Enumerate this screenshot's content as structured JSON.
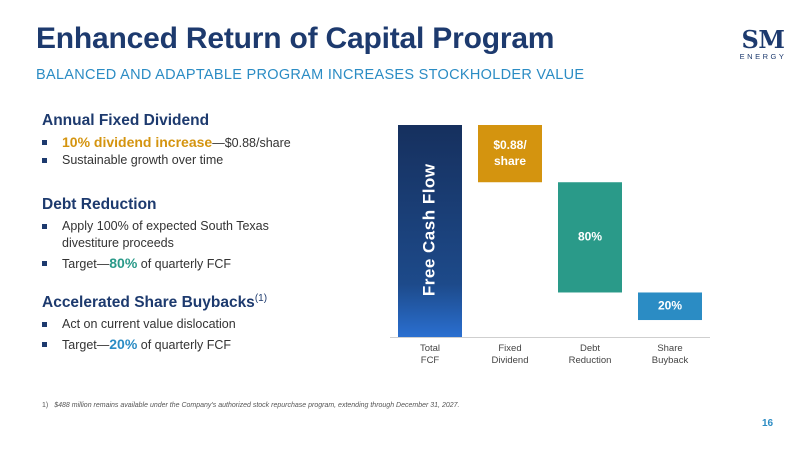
{
  "header": {
    "title": "Enhanced Return of Capital Program",
    "subtitle": "BALANCED AND ADAPTABLE PROGRAM INCREASES STOCKHOLDER VALUE"
  },
  "logo": {
    "mark": "SM",
    "sub": "ENERGY"
  },
  "sections": {
    "dividend": {
      "heading": "Annual Fixed Dividend",
      "b1_highlight": "10% dividend increase",
      "b1_rest": "—$0.88/share",
      "b2": "Sustainable growth over time"
    },
    "debt": {
      "heading": "Debt Reduction",
      "b1_line1": "Apply 100% of expected South Texas",
      "b1_line2": "divestiture proceeds",
      "b2_pre": "Target—",
      "b2_highlight": "80%",
      "b2_post": " of quarterly FCF"
    },
    "buyback": {
      "heading": "Accelerated Share Buybacks",
      "heading_note": "(1)",
      "b1": "Act on current value dislocation",
      "b2_pre": "Target—",
      "b2_highlight": "20%",
      "b2_post": " of quarterly FCF"
    }
  },
  "chart_data": {
    "type": "bar",
    "subtype": "waterfall",
    "categories": [
      [
        "Total",
        "FCF"
      ],
      [
        "Fixed",
        "Dividend"
      ],
      [
        "Debt",
        "Reduction"
      ],
      [
        "Share",
        "Buyback"
      ]
    ],
    "bars": [
      {
        "name": "total",
        "label": "Free Cash Flow",
        "start": 0,
        "end": 100,
        "color": "#1d3a6e"
      },
      {
        "name": "dividend",
        "label": "$0.88/ share",
        "label_lines": [
          "$0.88/",
          "share"
        ],
        "start": 73,
        "end": 100,
        "color": "#d4940f"
      },
      {
        "name": "debt",
        "label": "80%",
        "start": 21,
        "end": 73,
        "color": "#2a9a89"
      },
      {
        "name": "buyback",
        "label": "20%",
        "start": 8,
        "end": 21,
        "color": "#2b8cc4"
      }
    ],
    "ylim": [
      0,
      100
    ]
  },
  "footnote": {
    "num": "1)",
    "text": "$488 million remains available under the Company's authorized stock repurchase program, extending through December 31, 2027."
  },
  "page_number": "16"
}
